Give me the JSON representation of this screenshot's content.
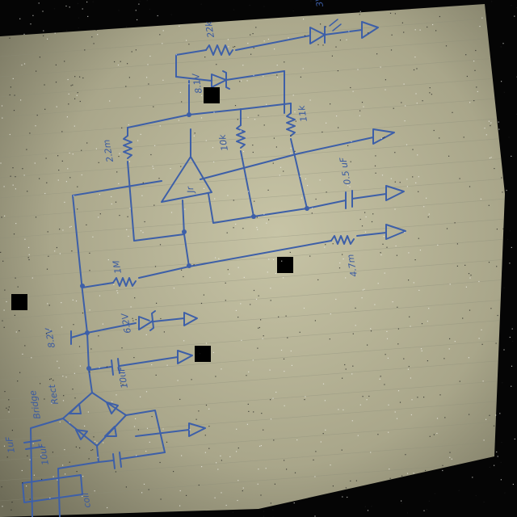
{
  "labels": {
    "r_top": "22k",
    "led_top": "3V",
    "zener_top": "8.1V",
    "r_left": "2.2m",
    "r_mid": "10k",
    "r_right": "11k",
    "cap_right": "0.5 uF",
    "opamp": "Jr",
    "r_fb": "1M",
    "r_out": "4.7m",
    "voltage_node": "8.2V",
    "zener_low": "6.2V",
    "cap_low": "10uF",
    "bridge": "Bridge",
    "bridge_sub": "Rect",
    "cap_bottom_left": "10uF",
    "coil": "coil",
    "left_edge": "1uF"
  },
  "colors": {
    "paper": "#b9b69a",
    "ink": "#3d5fa8",
    "background": "#050505"
  }
}
